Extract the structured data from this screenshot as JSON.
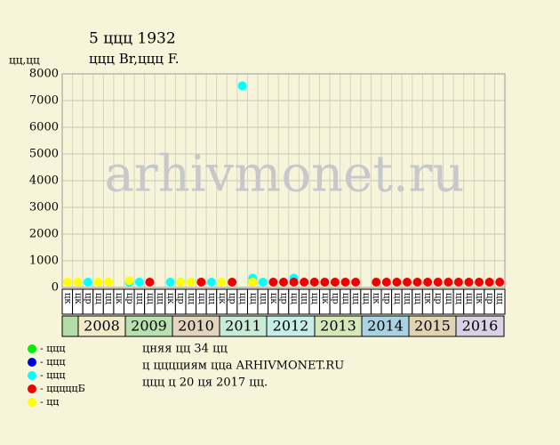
{
  "chart_data": {
    "type": "scatter",
    "title": "5 ццц 1932",
    "subtitle": "ццц Br,ццц F.",
    "y_label": "цц,цц",
    "watermark": "arhivmonet.ru",
    "categories": [
      "цк",
      "цк",
      "цр",
      "цц",
      "цц",
      "цк",
      "цр",
      "цц",
      "цц",
      "цц",
      "цк",
      "цр",
      "цц",
      "цц",
      "цц",
      "цк",
      "цр",
      "цц",
      "цц",
      "цц",
      "цк",
      "цр",
      "цц",
      "цц",
      "цц",
      "цк",
      "цр",
      "цц",
      "цц",
      "цц",
      "цк",
      "цр",
      "цц",
      "цц",
      "цц",
      "цк",
      "цр",
      "цц",
      "цц",
      "цц",
      "цк",
      "цр",
      "цц"
    ],
    "years": [
      {
        "label": "2008",
        "color": "#f2eccb"
      },
      {
        "label": "2009",
        "color": "#b9e0b0"
      },
      {
        "label": "2010",
        "color": "#e3d5bd"
      },
      {
        "label": "2011",
        "color": "#c8ecd6"
      },
      {
        "label": "2012",
        "color": "#c6eee8"
      },
      {
        "label": "2013",
        "color": "#d6e8b8"
      },
      {
        "label": "2014",
        "color": "#a9d3e3"
      },
      {
        "label": "2015",
        "color": "#e3d3b2"
      },
      {
        "label": "2016",
        "color": "#d9d2e6"
      }
    ],
    "first_cell_color": "#b5dba8",
    "series": [
      {
        "name": "- ццц",
        "color": "#00ee00",
        "values": [
          null,
          null,
          null,
          null,
          null,
          null,
          null,
          null,
          null,
          null,
          null,
          null,
          null,
          null,
          null,
          null,
          null,
          null,
          null,
          null,
          null,
          null,
          null,
          null,
          null,
          null,
          null,
          null,
          null,
          null,
          null,
          null,
          null,
          null,
          null,
          null,
          null,
          null,
          null,
          null,
          null,
          null,
          null
        ]
      },
      {
        "name": "- ццц",
        "color": "#0000dd",
        "values": [
          null,
          null,
          null,
          null,
          null,
          null,
          200,
          null,
          null,
          null,
          null,
          null,
          null,
          null,
          null,
          null,
          null,
          null,
          null,
          null,
          null,
          null,
          null,
          null,
          null,
          null,
          null,
          null,
          null,
          null,
          null,
          null,
          null,
          null,
          null,
          null,
          null,
          null,
          null,
          null,
          null,
          null,
          null
        ]
      },
      {
        "name": "- ццц",
        "color": "#00ffff",
        "values": [
          null,
          null,
          200,
          null,
          null,
          null,
          200,
          200,
          null,
          null,
          200,
          200,
          null,
          200,
          200,
          null,
          null,
          7550,
          350,
          200,
          null,
          null,
          350,
          null,
          200,
          null,
          null,
          null,
          null,
          null,
          null,
          null,
          null,
          null,
          null,
          null,
          null,
          null,
          null,
          null,
          null,
          null,
          null
        ]
      },
      {
        "name": "- цццццБ",
        "color": "#ee0000",
        "values": [
          null,
          null,
          null,
          null,
          null,
          null,
          null,
          null,
          200,
          null,
          null,
          null,
          null,
          200,
          null,
          null,
          200,
          null,
          200,
          null,
          200,
          200,
          200,
          200,
          200,
          200,
          200,
          200,
          200,
          null,
          200,
          200,
          200,
          200,
          200,
          200,
          200,
          200,
          200,
          200,
          200,
          200,
          200
        ]
      },
      {
        "name": "- цц",
        "color": "#ffff00",
        "values": [
          200,
          200,
          null,
          200,
          200,
          null,
          250,
          null,
          null,
          null,
          null,
          200,
          200,
          null,
          null,
          200,
          null,
          null,
          200,
          null,
          null,
          null,
          null,
          null,
          null,
          null,
          null,
          null,
          null,
          null,
          null,
          null,
          null,
          null,
          null,
          null,
          null,
          null,
          null,
          null,
          null,
          null,
          null
        ]
      }
    ],
    "ylim": [
      0,
      8000
    ],
    "yticks": [
      0,
      1000,
      2000,
      3000,
      4000,
      5000,
      6000,
      7000,
      8000
    ],
    "grid": true,
    "notes": [
      "цняя цц 34 цц",
      "ц цццциям ццa ARHIVMONET.RU",
      "ццц ц 20 ця 2017 цц."
    ]
  }
}
